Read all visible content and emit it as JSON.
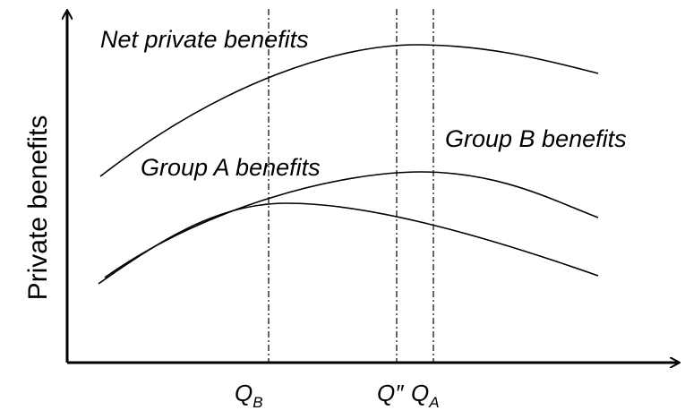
{
  "curves": {
    "net": "Net private benefits",
    "group_a": "Group A benefits",
    "group_b": "Group B benefits"
  },
  "y_axis_label": "Private benefits",
  "quantities": [
    {
      "main": "Q",
      "sub": "B"
    },
    {
      "main": "Q″"
    },
    {
      "main": "Q",
      "sub": "A"
    }
  ]
}
